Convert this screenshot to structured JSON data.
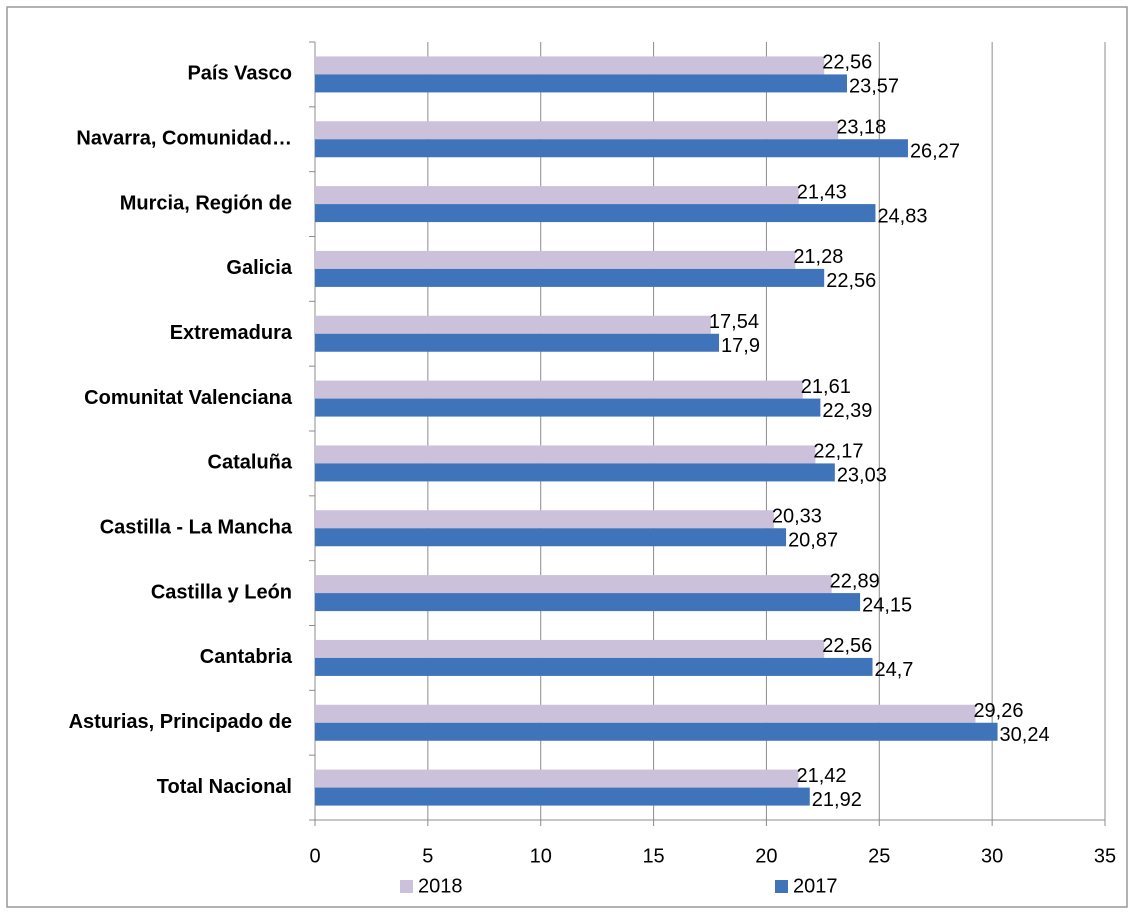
{
  "chart_data": {
    "type": "barh",
    "categories": [
      "País Vasco",
      "Navarra, Comunidad…",
      "Murcia, Región de",
      "Galicia",
      "Extremadura",
      "Comunitat Valenciana",
      "Cataluña",
      "Castilla - La Mancha",
      "Castilla y León",
      "Cantabria",
      "Asturias, Principado de",
      "Total Nacional"
    ],
    "series": [
      {
        "name": "2018",
        "color": "#ccc1da",
        "values": [
          22.56,
          23.18,
          21.43,
          21.28,
          17.54,
          21.61,
          22.17,
          20.33,
          22.89,
          22.56,
          29.26,
          21.42
        ],
        "value_labels": [
          "22,56",
          "23,18",
          "21,43",
          "21,28",
          "17,54",
          "21,61",
          "22,17",
          "20,33",
          "22,89",
          "22,56",
          "29,26",
          "21,42"
        ]
      },
      {
        "name": "2017",
        "color": "#3f74bb",
        "values": [
          23.57,
          26.27,
          24.83,
          22.56,
          17.9,
          22.39,
          23.03,
          20.87,
          24.15,
          24.7,
          30.24,
          21.92
        ],
        "value_labels": [
          "23,57",
          "26,27",
          "24,83",
          "22,56",
          "17,9",
          "22,39",
          "23,03",
          "20,87",
          "24,15",
          "24,7",
          "30,24",
          "21,92"
        ]
      }
    ],
    "xlim": [
      0,
      35
    ],
    "xticks": [
      0,
      5,
      10,
      15,
      20,
      25,
      30,
      35
    ],
    "grid": true
  }
}
